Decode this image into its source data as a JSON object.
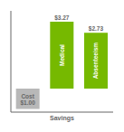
{
  "chart_data": {
    "type": "bar",
    "categories": [
      null,
      "Medical",
      "Absenteeism"
    ],
    "values": [
      -1.0,
      3.27,
      2.73
    ],
    "value_labels": [
      "Cost\n$1.00",
      "$3.27",
      "$2.73"
    ],
    "colors": [
      "#b8b8b8",
      "#76b900",
      "#76b900"
    ],
    "ylim": [
      -1.15,
      3.8
    ],
    "data_labels": true,
    "tick_labels": false,
    "annotation": "Savings"
  }
}
